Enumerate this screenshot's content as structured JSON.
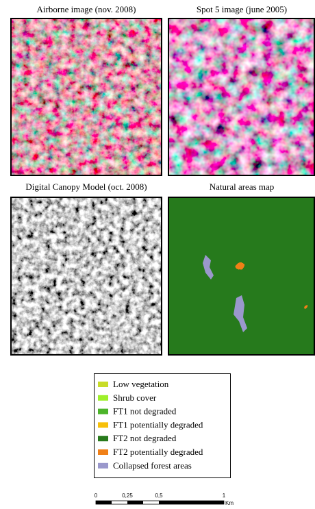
{
  "panels": [
    {
      "title": "Airborne image (nov. 2008)"
    },
    {
      "title": "Spot 5 image (june 2005)"
    },
    {
      "title": "Digital Canopy Model (oct. 2008)"
    },
    {
      "title": "Natural areas map"
    }
  ],
  "legend": [
    {
      "label": "Low vegetation",
      "color": "#c8dc28"
    },
    {
      "label": "Shrub cover",
      "color": "#9ef02a"
    },
    {
      "label": "FT1 not degraded",
      "color": "#4cb42a"
    },
    {
      "label": "FT1 potentially degraded",
      "color": "#f7c00a"
    },
    {
      "label": "FT2 not degraded",
      "color": "#287a1c"
    },
    {
      "label": "FT2 potentially degraded",
      "color": "#f08018"
    },
    {
      "label": "Collapsed forest areas",
      "color": "#9a98cc"
    }
  ],
  "scale_bar": {
    "labels": [
      "0",
      "0,25",
      "0,5",
      "1"
    ],
    "unit": "Km"
  }
}
